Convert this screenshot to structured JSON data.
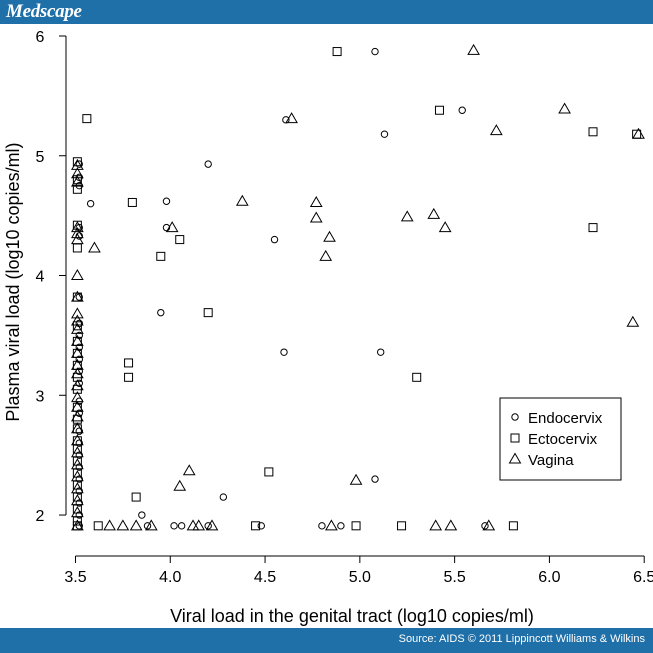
{
  "header": {
    "brand": "Medscape"
  },
  "footer": {
    "source": "Source: AIDS © 2011 Lippincott Williams & Wilkins"
  },
  "colors": {
    "bar": "#1f6fa8",
    "marker": "#000000"
  },
  "chart_data": {
    "type": "scatter",
    "xlabel": "Viral load in the genital tract (log10 copies/ml)",
    "ylabel": "Plasma viral load (log10 copies/ml)",
    "xlim": [
      3.45,
      6.52
    ],
    "ylim": [
      1.85,
      6.05
    ],
    "xticks": [
      3.5,
      4.0,
      4.5,
      5.0,
      5.5,
      6.0,
      6.5
    ],
    "xtick_labels": [
      "3.5",
      "4.0",
      "4.5",
      "5.0",
      "5.5",
      "6.0",
      "6.5"
    ],
    "yticks": [
      2,
      3,
      4,
      5,
      6
    ],
    "ytick_labels": [
      "2",
      "3",
      "4",
      "5",
      "6"
    ],
    "grid": false,
    "legend": "right-middle",
    "series": [
      {
        "name": "Endocervix",
        "marker": "circle",
        "points": [
          [
            3.52,
            4.93
          ],
          [
            3.52,
            4.82
          ],
          [
            3.52,
            4.75
          ],
          [
            3.52,
            4.4
          ],
          [
            3.52,
            4.33
          ],
          [
            3.52,
            3.82
          ],
          [
            3.52,
            3.6
          ],
          [
            3.52,
            3.5
          ],
          [
            3.52,
            3.4
          ],
          [
            3.52,
            3.3
          ],
          [
            3.52,
            3.2
          ],
          [
            3.52,
            3.1
          ],
          [
            3.52,
            2.95
          ],
          [
            3.52,
            2.85
          ],
          [
            3.52,
            2.7
          ],
          [
            3.52,
            2.6
          ],
          [
            3.52,
            2.5
          ],
          [
            3.52,
            2.4
          ],
          [
            3.52,
            2.3
          ],
          [
            3.52,
            2.2
          ],
          [
            3.52,
            2.1
          ],
          [
            3.52,
            2.0
          ],
          [
            3.52,
            1.91
          ],
          [
            3.58,
            4.6
          ],
          [
            3.85,
            2.0
          ],
          [
            3.88,
            1.91
          ],
          [
            3.95,
            3.69
          ],
          [
            3.98,
            4.62
          ],
          [
            3.98,
            4.4
          ],
          [
            4.02,
            1.91
          ],
          [
            4.06,
            1.91
          ],
          [
            4.2,
            4.93
          ],
          [
            4.2,
            1.91
          ],
          [
            4.28,
            2.15
          ],
          [
            4.48,
            1.91
          ],
          [
            4.55,
            4.3
          ],
          [
            4.6,
            3.36
          ],
          [
            4.61,
            5.3
          ],
          [
            4.8,
            1.91
          ],
          [
            4.9,
            1.91
          ],
          [
            5.08,
            5.87
          ],
          [
            5.08,
            2.3
          ],
          [
            5.11,
            3.36
          ],
          [
            5.13,
            5.18
          ],
          [
            5.54,
            5.38
          ],
          [
            5.66,
            1.91
          ]
        ]
      },
      {
        "name": "Ectocervix",
        "marker": "square",
        "points": [
          [
            3.51,
            4.95
          ],
          [
            3.51,
            4.8
          ],
          [
            3.51,
            4.72
          ],
          [
            3.51,
            4.42
          ],
          [
            3.51,
            4.23
          ],
          [
            3.51,
            3.82
          ],
          [
            3.51,
            3.58
          ],
          [
            3.51,
            3.45
          ],
          [
            3.51,
            3.35
          ],
          [
            3.51,
            3.25
          ],
          [
            3.51,
            3.15
          ],
          [
            3.51,
            3.05
          ],
          [
            3.51,
            2.9
          ],
          [
            3.51,
            2.8
          ],
          [
            3.51,
            2.72
          ],
          [
            3.51,
            2.62
          ],
          [
            3.51,
            2.55
          ],
          [
            3.51,
            2.45
          ],
          [
            3.51,
            2.35
          ],
          [
            3.51,
            2.25
          ],
          [
            3.51,
            2.15
          ],
          [
            3.51,
            2.05
          ],
          [
            3.51,
            1.95
          ],
          [
            3.51,
            1.91
          ],
          [
            3.56,
            5.31
          ],
          [
            3.62,
            1.91
          ],
          [
            3.78,
            3.27
          ],
          [
            3.78,
            3.15
          ],
          [
            3.8,
            4.61
          ],
          [
            3.82,
            2.15
          ],
          [
            3.95,
            4.16
          ],
          [
            4.05,
            4.3
          ],
          [
            4.2,
            3.69
          ],
          [
            4.45,
            1.91
          ],
          [
            4.52,
            2.36
          ],
          [
            4.88,
            5.87
          ],
          [
            4.98,
            1.91
          ],
          [
            5.22,
            1.91
          ],
          [
            5.3,
            3.15
          ],
          [
            5.42,
            5.38
          ],
          [
            5.81,
            1.91
          ],
          [
            6.23,
            5.2
          ],
          [
            6.23,
            4.4
          ],
          [
            6.46,
            5.18
          ]
        ]
      },
      {
        "name": "Vagina",
        "marker": "triangle",
        "points": [
          [
            3.51,
            4.92
          ],
          [
            3.51,
            4.85
          ],
          [
            3.51,
            4.78
          ],
          [
            3.51,
            4.4
          ],
          [
            3.51,
            4.35
          ],
          [
            3.51,
            4.3
          ],
          [
            3.51,
            4.0
          ],
          [
            3.51,
            3.82
          ],
          [
            3.51,
            3.68
          ],
          [
            3.51,
            3.62
          ],
          [
            3.51,
            3.55
          ],
          [
            3.51,
            3.45
          ],
          [
            3.51,
            3.35
          ],
          [
            3.51,
            3.25
          ],
          [
            3.51,
            3.18
          ],
          [
            3.51,
            3.08
          ],
          [
            3.51,
            2.98
          ],
          [
            3.51,
            2.9
          ],
          [
            3.51,
            2.82
          ],
          [
            3.51,
            2.72
          ],
          [
            3.51,
            2.62
          ],
          [
            3.51,
            2.52
          ],
          [
            3.51,
            2.42
          ],
          [
            3.51,
            2.32
          ],
          [
            3.51,
            2.22
          ],
          [
            3.51,
            2.12
          ],
          [
            3.51,
            2.02
          ],
          [
            3.51,
            1.91
          ],
          [
            3.6,
            4.23
          ],
          [
            3.68,
            1.91
          ],
          [
            3.75,
            1.91
          ],
          [
            3.82,
            1.91
          ],
          [
            3.9,
            1.91
          ],
          [
            4.01,
            4.4
          ],
          [
            4.05,
            2.24
          ],
          [
            4.1,
            2.37
          ],
          [
            4.12,
            1.91
          ],
          [
            4.15,
            1.91
          ],
          [
            4.22,
            1.91
          ],
          [
            4.38,
            4.62
          ],
          [
            4.64,
            5.31
          ],
          [
            4.77,
            4.61
          ],
          [
            4.77,
            4.48
          ],
          [
            4.82,
            4.16
          ],
          [
            4.84,
            4.32
          ],
          [
            4.85,
            1.91
          ],
          [
            4.98,
            2.29
          ],
          [
            5.25,
            4.49
          ],
          [
            5.39,
            4.51
          ],
          [
            5.4,
            1.91
          ],
          [
            5.45,
            4.4
          ],
          [
            5.48,
            1.91
          ],
          [
            5.6,
            5.88
          ],
          [
            5.68,
            1.91
          ],
          [
            5.72,
            5.21
          ],
          [
            6.08,
            5.39
          ],
          [
            6.44,
            3.61
          ],
          [
            6.47,
            5.18
          ]
        ]
      }
    ]
  }
}
